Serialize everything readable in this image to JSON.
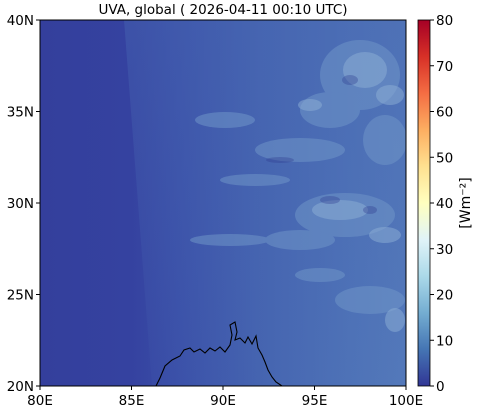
{
  "map": {
    "title": "UVA, global ( 2026-04-11 00:10 UTC)",
    "colorbar_label": "[Wm⁻²]",
    "x_ticks": [
      "80E",
      "85E",
      "90E",
      "95E",
      "100E"
    ],
    "y_ticks": [
      "40N",
      "35N",
      "30N",
      "25N",
      "20N"
    ],
    "colorbar_ticks": [
      "80",
      "70",
      "60",
      "50",
      "40",
      "30",
      "20",
      "10",
      "0"
    ],
    "colormap": [
      "#313695",
      "#4575b4",
      "#74add1",
      "#abd9e9",
      "#e0f3f8",
      "#ffffbf",
      "#fee090",
      "#fdae61",
      "#f46d43",
      "#d73027",
      "#a50026"
    ],
    "extent": {
      "lon": [
        80,
        100
      ],
      "lat": [
        20,
        40
      ]
    },
    "colorbar_range": [
      0,
      80
    ]
  }
}
